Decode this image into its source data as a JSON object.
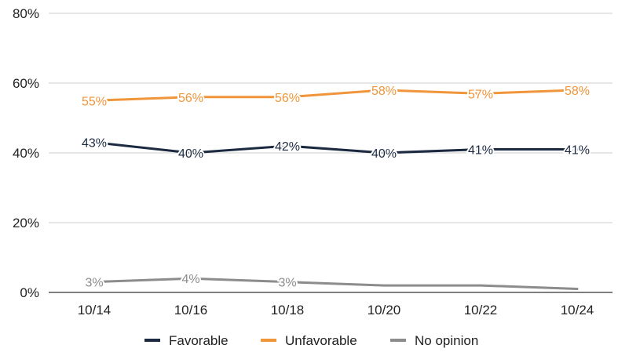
{
  "chart_data": {
    "type": "line",
    "categories": [
      "10/14",
      "10/16",
      "10/18",
      "10/20",
      "10/22",
      "10/24"
    ],
    "ylim": [
      0,
      80
    ],
    "yticks": [
      "0%",
      "20%",
      "40%",
      "60%",
      "80%"
    ],
    "grid": true,
    "legend_position": "bottom",
    "series": [
      {
        "name": "Favorable",
        "color": "#1b2a41",
        "values": [
          43,
          40,
          42,
          40,
          41,
          41
        ],
        "labels": [
          "43%",
          "40%",
          "42%",
          "40%",
          "41%",
          "41%"
        ]
      },
      {
        "name": "Unfavorable",
        "color": "#f0953a",
        "values": [
          55,
          56,
          56,
          58,
          57,
          58
        ],
        "labels": [
          "55%",
          "56%",
          "56%",
          "58%",
          "57%",
          "58%"
        ]
      },
      {
        "name": "No opinion",
        "color": "#8c8c8c",
        "values": [
          3,
          4,
          3,
          2,
          2,
          1
        ],
        "labels": [
          "3%",
          "4%",
          "3%",
          "",
          "",
          ""
        ]
      }
    ]
  }
}
